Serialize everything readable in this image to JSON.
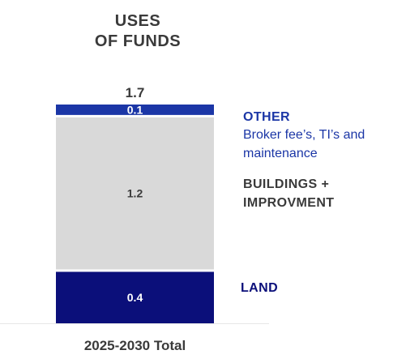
{
  "chart_title": [
    "USES",
    "OF FUNDS"
  ],
  "chart_data": {
    "type": "bar",
    "stacked": true,
    "categories": [
      "2025-2030 Total"
    ],
    "total": 1.7,
    "series": [
      {
        "name": "LAND",
        "values": [
          0.4
        ],
        "color": "#0b0f7a"
      },
      {
        "name": "BUILDINGS + IMPROVMENT",
        "values": [
          1.2
        ],
        "color": "#d9d9d9"
      },
      {
        "name": "OTHER",
        "values": [
          0.1
        ],
        "color": "#1b36a6"
      }
    ],
    "data_labels": [
      "0.4",
      "1.2",
      "0.1"
    ],
    "total_label": "1.7",
    "legend_placement": "right",
    "grid": false
  },
  "legend": {
    "other": {
      "title": "OTHER",
      "sub_line1": "Broker fee’s, TI’s and",
      "sub_line2": "maintenance",
      "title_color": "#1b36a6",
      "sub_color": "#1b36a6"
    },
    "buildings": {
      "line1": "BUILDINGS +",
      "line2": "IMPROVMENT",
      "color": "#3a3a3a"
    },
    "land": {
      "title": "LAND",
      "color": "#0b0f7a"
    }
  },
  "text_colors": {
    "dark_label": "#3a3a3a",
    "light_label": "#ffffff"
  }
}
